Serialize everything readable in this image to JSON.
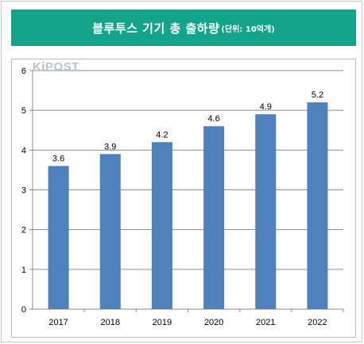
{
  "header": {
    "title": "블루투스 기기 총 출하량",
    "unit": "(단위: 10억개)"
  },
  "watermark": {
    "prefix": "K",
    "accent": "i",
    "rest": "POST"
  },
  "chart_data": {
    "type": "bar",
    "categories": [
      "2017",
      "2018",
      "2019",
      "2020",
      "2021",
      "2022"
    ],
    "values": [
      3.6,
      3.9,
      4.2,
      4.6,
      4.9,
      5.2
    ],
    "value_labels": [
      "3.6",
      "3.9",
      "4.2",
      "4.6",
      "4.9",
      "5.2"
    ],
    "yticks": [
      "0",
      "1",
      "2",
      "3",
      "4",
      "5",
      "6"
    ],
    "ylim": [
      0,
      6
    ],
    "grid": true,
    "legend": false,
    "bar_color": "#4f81bd"
  },
  "colors": {
    "header_bg": "#14a38b",
    "grid": "#8c8c8c"
  }
}
